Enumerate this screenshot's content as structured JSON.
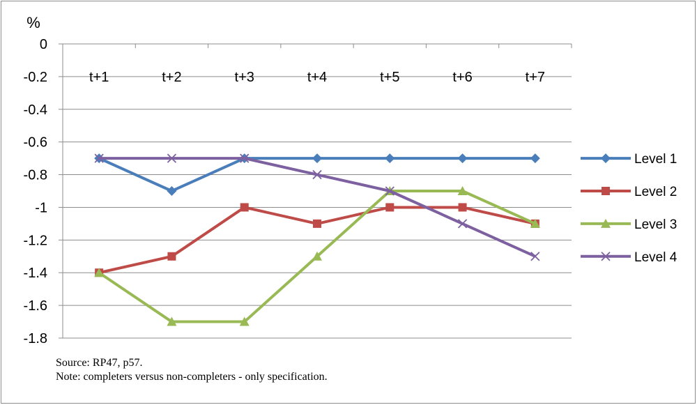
{
  "chart_data": {
    "type": "line",
    "unit_label": "%",
    "categories": [
      "t+1",
      "t+2",
      "t+3",
      "t+4",
      "t+5",
      "t+6",
      "t+7"
    ],
    "ylim": [
      -1.8,
      0
    ],
    "yticks": [
      "0",
      "-0.2",
      "-0.4",
      "-0.6",
      "-0.8",
      "-1",
      "-1.2",
      "-1.4",
      "-1.6",
      "-1.8"
    ],
    "grid": true,
    "legend_position": "right",
    "series": [
      {
        "name": "Level 1",
        "color": "#4a7ebb",
        "marker": "diamond",
        "values": [
          -0.7,
          -0.9,
          -0.7,
          -0.7,
          -0.7,
          -0.7,
          -0.7
        ]
      },
      {
        "name": "Level 2",
        "color": "#be4b48",
        "marker": "square",
        "values": [
          -1.4,
          -1.3,
          -1.0,
          -1.1,
          -1.0,
          -1.0,
          -1.1
        ]
      },
      {
        "name": "Level 3",
        "color": "#98b954",
        "marker": "triangle",
        "values": [
          -1.4,
          -1.7,
          -1.7,
          -1.3,
          -0.9,
          -0.9,
          -1.1
        ]
      },
      {
        "name": "Level 4",
        "color": "#7d60a0",
        "marker": "x",
        "values": [
          -0.7,
          -0.7,
          -0.7,
          -0.8,
          -0.9,
          -1.1,
          -1.3
        ]
      }
    ]
  },
  "notes": {
    "source": "Source: RP47, p57.",
    "note": "Note: completers versus non-completers - only specification."
  }
}
